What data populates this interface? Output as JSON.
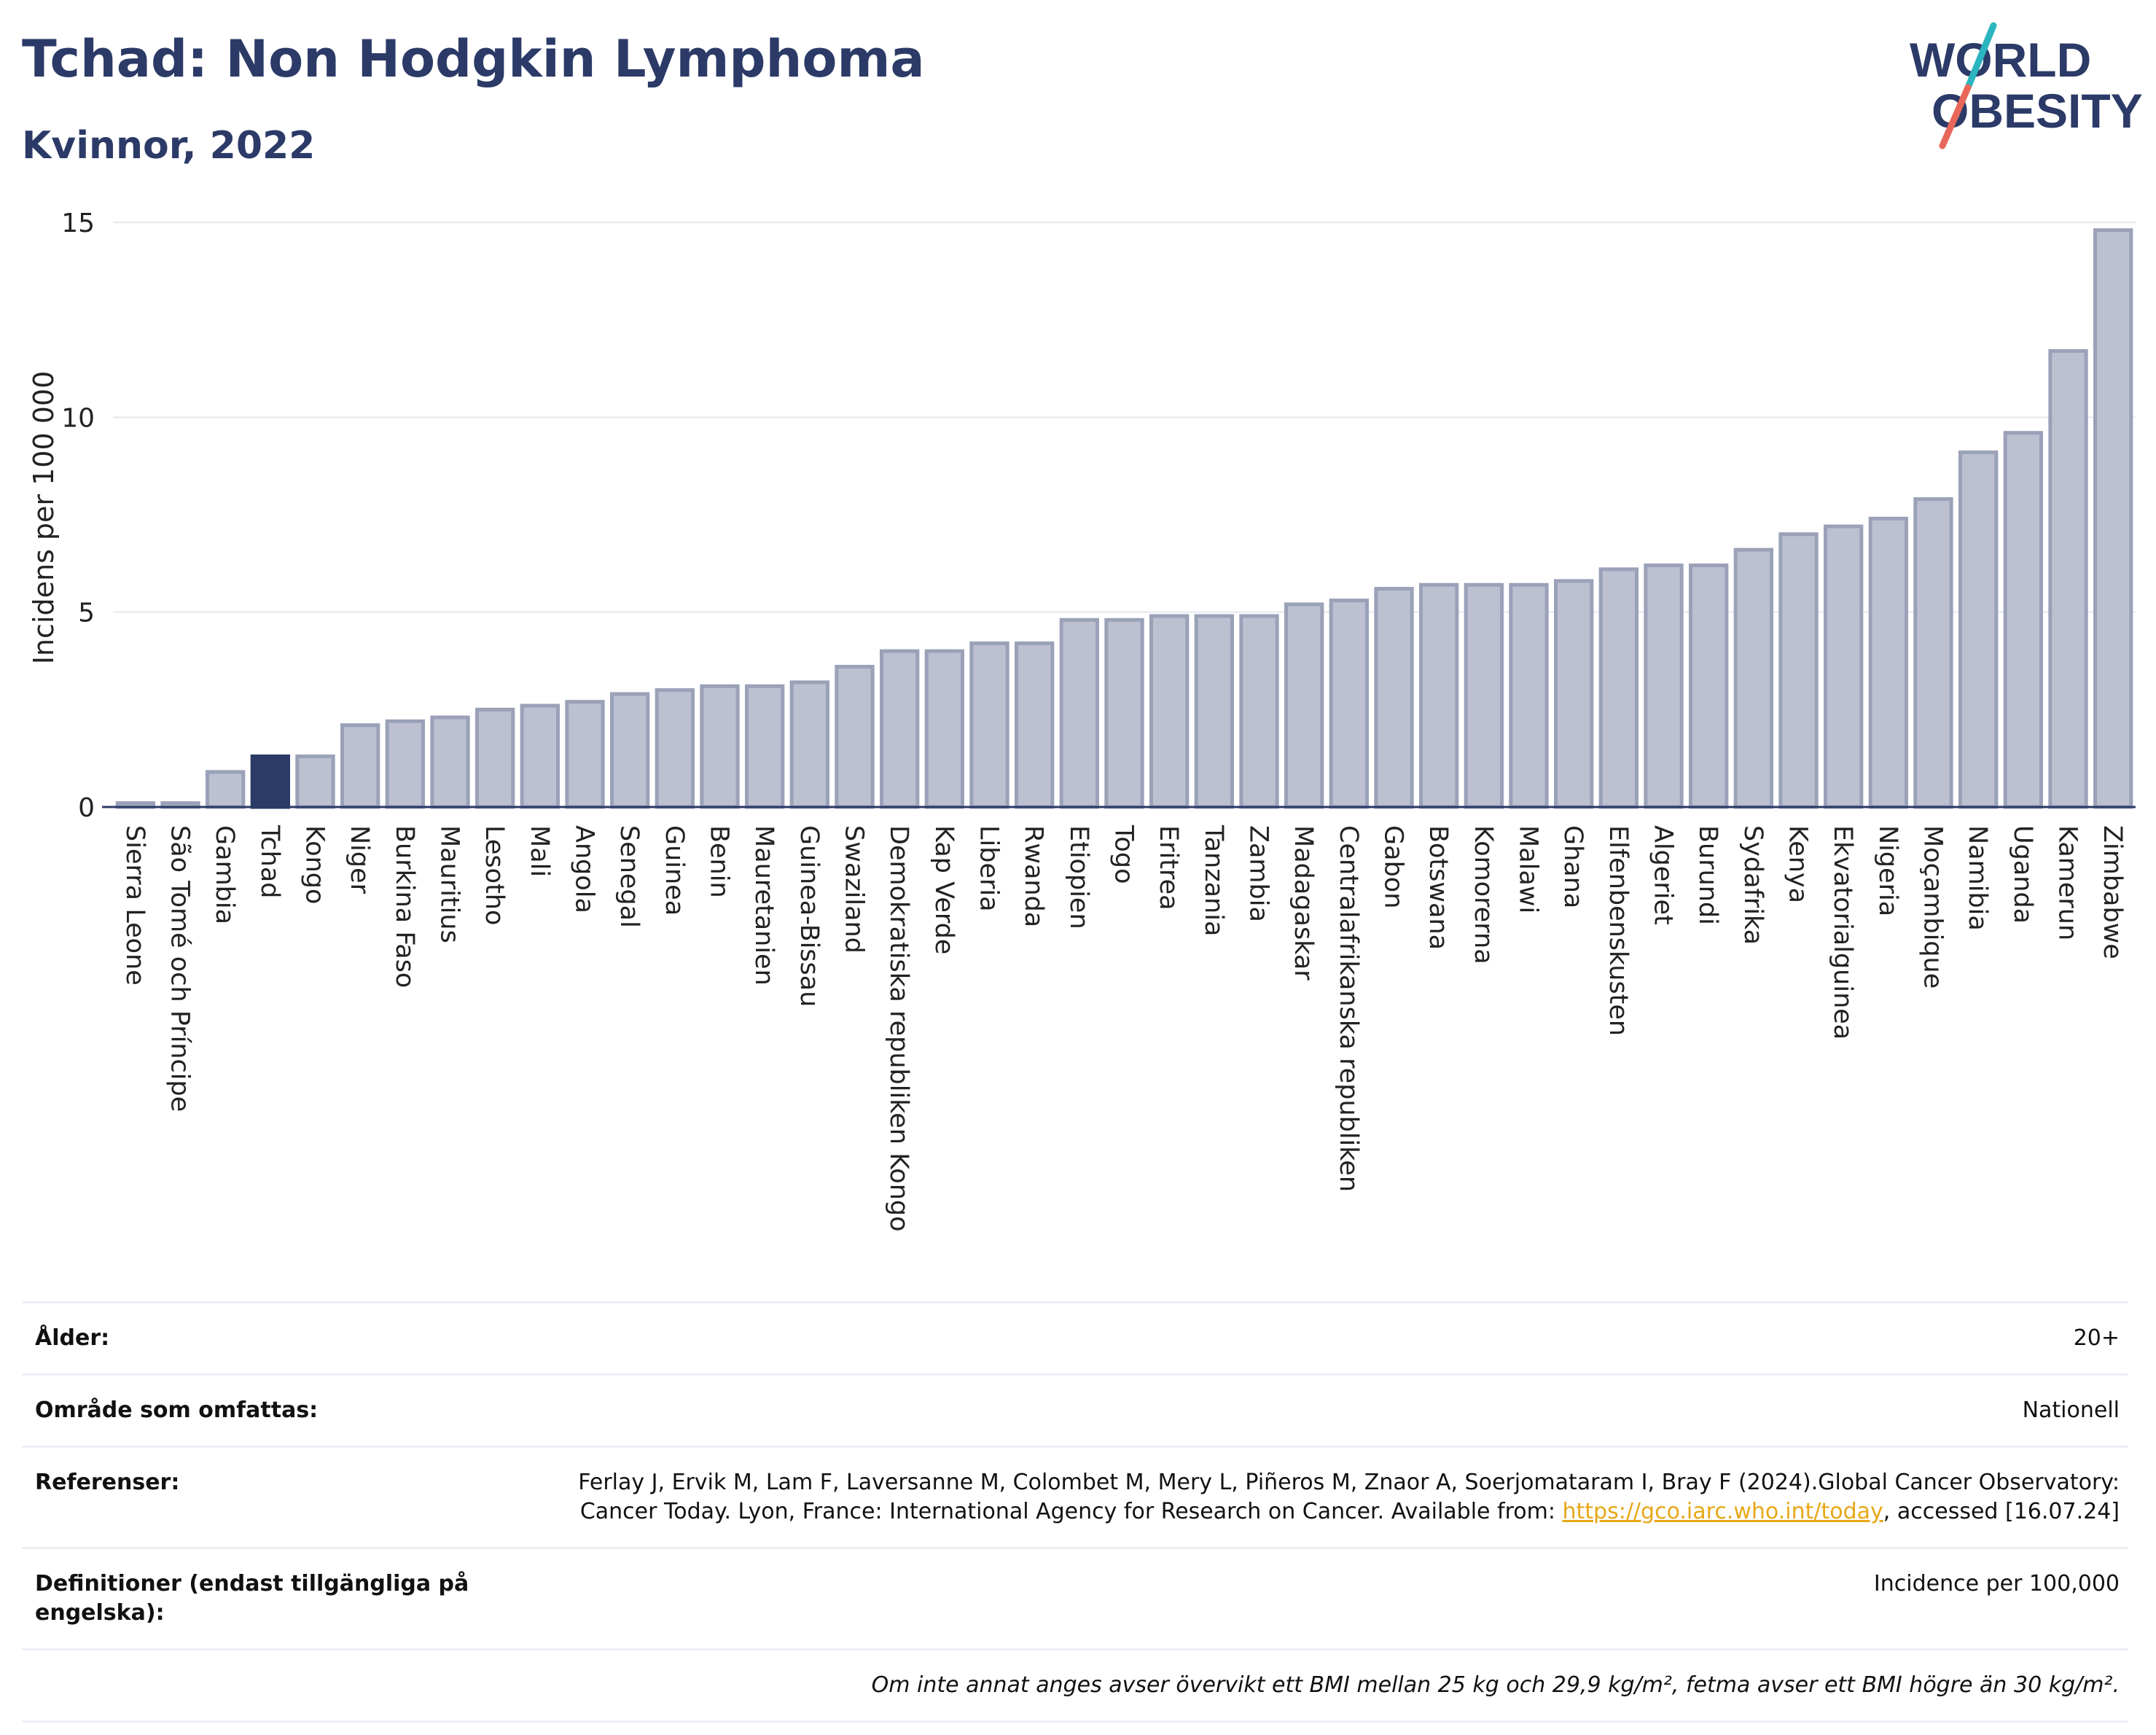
{
  "title": "Tchad: Non Hodgkin Lymphoma",
  "subtitle": "Kvinnor, 2022",
  "logo": {
    "line1": "WORLD",
    "line2": "OBESITY"
  },
  "colors": {
    "highlight": "#2b3a67",
    "bar_fill": "#bcc0d0",
    "bar_edge": "#9aa1b8",
    "title": "#2b3a67"
  },
  "chart_data": {
    "type": "bar",
    "ylabel": "Incidens per 100 000",
    "ylim": [
      0,
      15
    ],
    "yticks": [
      0,
      5,
      10,
      15
    ],
    "grid": true,
    "highlight": "Tchad",
    "categories": [
      "Sierra Leone",
      "São Tomé och Príncipe",
      "Gambia",
      "Tchad",
      "Kongo",
      "Niger",
      "Burkina Faso",
      "Mauritius",
      "Lesotho",
      "Mali",
      "Angola",
      "Senegal",
      "Guinea",
      "Benin",
      "Mauretanien",
      "Guinea-Bissau",
      "Swaziland",
      "Demokratiska republiken Kongo",
      "Kap Verde",
      "Liberia",
      "Rwanda",
      "Etiopien",
      "Togo",
      "Eritrea",
      "Tanzania",
      "Zambia",
      "Madagaskar",
      "Centralafrikanska republiken",
      "Gabon",
      "Botswana",
      "Komorerna",
      "Malawi",
      "Ghana",
      "Elfenbenskusten",
      "Algeriet",
      "Burundi",
      "Sydafrika",
      "Kenya",
      "Ekvatorialguinea",
      "Nigeria",
      "Moçambique",
      "Namibia",
      "Uganda",
      "Kamerun",
      "Zimbabwe"
    ],
    "values": [
      0.1,
      0.1,
      0.9,
      1.3,
      1.3,
      2.1,
      2.2,
      2.3,
      2.5,
      2.6,
      2.7,
      2.9,
      3.0,
      3.1,
      3.1,
      3.2,
      3.6,
      4.0,
      4.0,
      4.2,
      4.2,
      4.8,
      4.8,
      4.9,
      4.9,
      4.9,
      5.2,
      5.3,
      5.6,
      5.7,
      5.7,
      5.7,
      5.8,
      6.1,
      6.2,
      6.2,
      6.6,
      7.0,
      7.2,
      7.4,
      7.9,
      9.1,
      9.6,
      11.7,
      14.8
    ]
  },
  "info": {
    "age_label": "Ålder:",
    "age_value": "20+",
    "area_label": "Område som omfattas:",
    "area_value": "Nationell",
    "ref_label": "Referenser:",
    "ref_text_1": "Ferlay J, Ervik M, Lam F, Laversanne M, Colombet M, Mery L, Piñeros M, Znaor A, Soerjomataram I, Bray F (2024).Global Cancer Observatory: Cancer Today. Lyon, France: International Agency for Research on Cancer. Available from: ",
    "ref_link": "https://gco.iarc.who.int/today",
    "ref_text_2": ", accessed [16.07.24]",
    "def_label": "Definitioner (endast tillgängliga på engelska):",
    "def_value": "Incidence per 100,000",
    "note": "Om inte annat anges avser övervikt ett BMI mellan 25 kg och 29,9 kg/m², fetma avser ett BMI högre än 30 kg/m²."
  }
}
